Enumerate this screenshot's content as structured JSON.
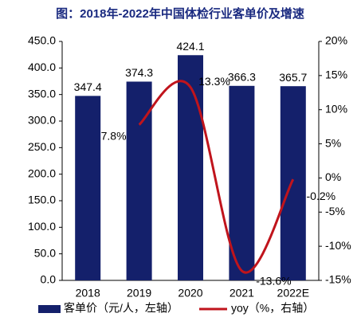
{
  "chart_data": {
    "type": "bar_line",
    "title": "图：2018年-2022年中国体检行业客单价及增速",
    "categories": [
      "2018",
      "2019",
      "2020",
      "2021",
      "2022E"
    ],
    "series": [
      {
        "name": "客单价（元/人，左轴）",
        "type": "bar",
        "color": "#14206b",
        "values": [
          347.4,
          374.3,
          424.1,
          366.3,
          365.7
        ]
      },
      {
        "name": "yoy（%，右轴）",
        "type": "line",
        "axis": "y2",
        "color": "#c0141c",
        "values": [
          null,
          7.8,
          13.3,
          -13.6,
          -0.2
        ],
        "value_labels": [
          null,
          "7.8%",
          "13.3%",
          "-13.6%",
          "-0.2%"
        ]
      }
    ],
    "ylim": [
      0,
      450
    ],
    "yticks": [
      {
        "value": 0,
        "label": "0.0"
      },
      {
        "value": 50,
        "label": "50.0"
      },
      {
        "value": 100,
        "label": "100.0"
      },
      {
        "value": 150,
        "label": "150.0"
      },
      {
        "value": 200,
        "label": "200.0"
      },
      {
        "value": 250,
        "label": "250.0"
      },
      {
        "value": 300,
        "label": "300.0"
      },
      {
        "value": 350,
        "label": "350.0"
      },
      {
        "value": 400,
        "label": "400.0"
      },
      {
        "value": 450,
        "label": "450.0"
      }
    ],
    "y2lim": [
      -15,
      20
    ],
    "y2ticks": [
      {
        "value": -15,
        "label": "-15%"
      },
      {
        "value": -10,
        "label": "-10%"
      },
      {
        "value": -5,
        "label": "-5%"
      },
      {
        "value": 0,
        "label": "0%"
      },
      {
        "value": 5,
        "label": "5%"
      },
      {
        "value": 10,
        "label": "10%"
      },
      {
        "value": 15,
        "label": "15%"
      },
      {
        "value": 20,
        "label": "20%"
      }
    ],
    "legend": "bottom"
  }
}
